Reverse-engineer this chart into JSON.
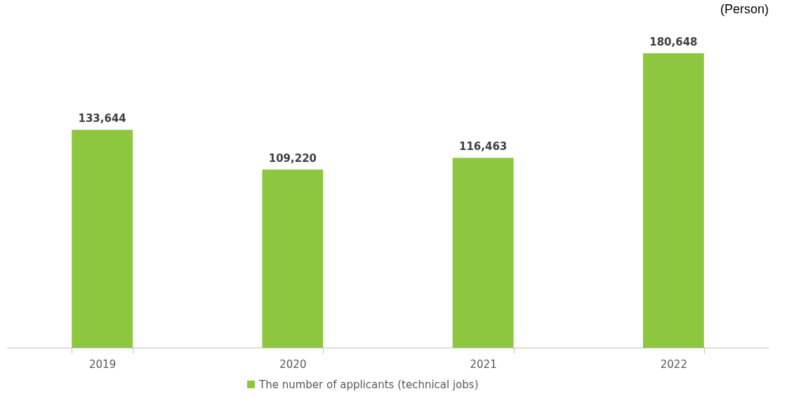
{
  "chart_data": {
    "type": "bar",
    "ylabel": "(Person)",
    "categories": [
      "2019",
      "2020",
      "2021",
      "2022"
    ],
    "series": [
      {
        "name": "The number of applicants (technical jobs)",
        "color": "#8dc63f",
        "values": [
          133644,
          109220,
          116463,
          180648
        ],
        "value_labels": [
          "133,644",
          "109,220",
          "116,463",
          "180,648"
        ]
      }
    ],
    "legend": "bottom",
    "grid": false
  }
}
